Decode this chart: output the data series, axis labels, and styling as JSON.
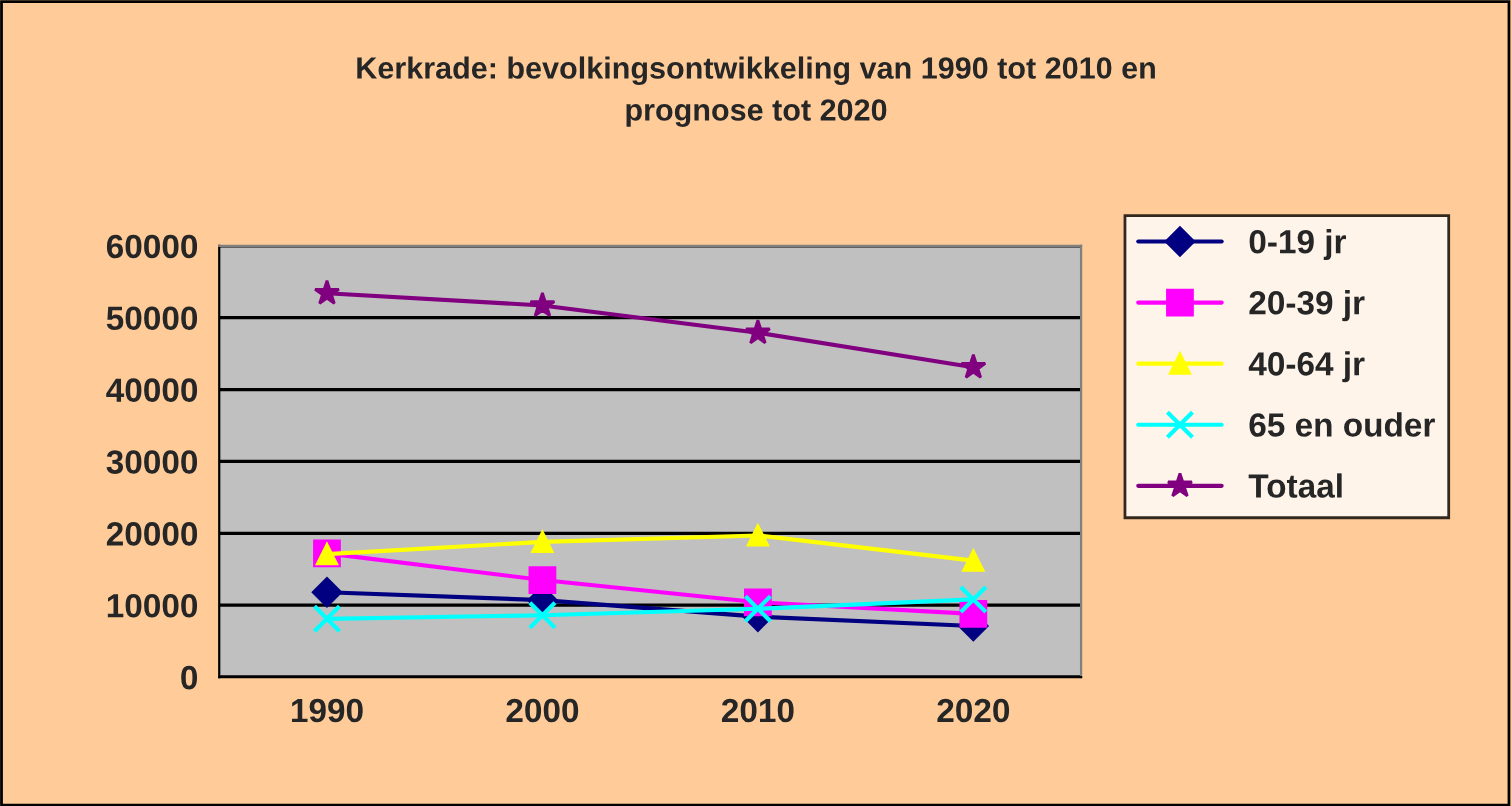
{
  "chart_data": {
    "type": "line",
    "title": "Kerkrade: bevolkingsontwikkeling van 1990 tot 2010 en\nprognose tot 2020",
    "categories": [
      "1990",
      "2000",
      "2010",
      "2020"
    ],
    "series": [
      {
        "name": "0-19 jr",
        "color": "#000080",
        "marker": "diamond",
        "values": [
          11800,
          10700,
          8400,
          7100
        ]
      },
      {
        "name": "20-39 jr",
        "color": "#ff00ff",
        "marker": "square",
        "values": [
          17200,
          13500,
          10400,
          8800
        ]
      },
      {
        "name": "40-64 jr",
        "color": "#ffff00",
        "marker": "triangle",
        "values": [
          17100,
          18800,
          19700,
          16200
        ]
      },
      {
        "name": "65 en ouder",
        "color": "#00ffff",
        "marker": "cross",
        "values": [
          8100,
          8600,
          9500,
          10800
        ]
      },
      {
        "name": "Totaal",
        "color": "#800080",
        "marker": "star",
        "values": [
          53400,
          51700,
          47900,
          43100
        ]
      }
    ],
    "ylim": [
      0,
      60000
    ],
    "yticks": [
      0,
      10000,
      20000,
      30000,
      40000,
      50000,
      60000
    ],
    "grid": "y",
    "legend": "right",
    "line_style": "solid"
  }
}
